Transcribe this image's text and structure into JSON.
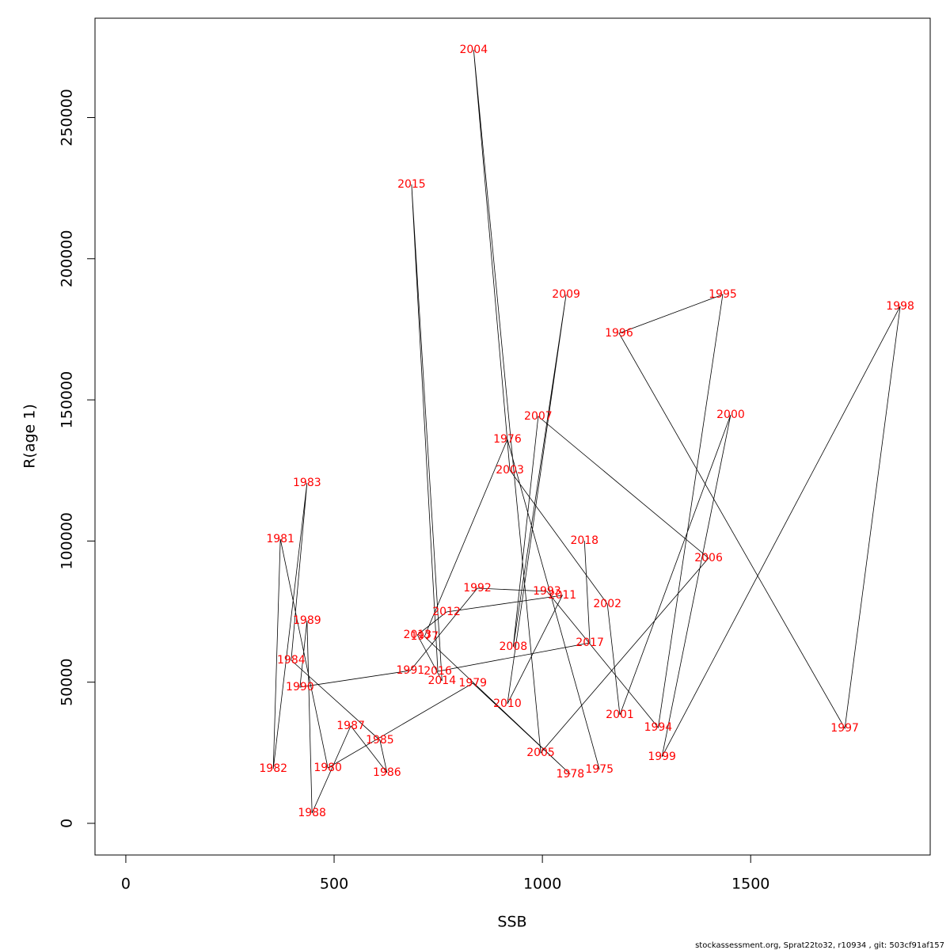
{
  "chart_data": {
    "type": "line",
    "xlabel": "SSB",
    "ylabel": "R(age 1)",
    "point_labels": [
      "1975",
      "1976",
      "1977",
      "1978",
      "1979",
      "1980",
      "1981",
      "1982",
      "1983",
      "1984",
      "1985",
      "1986",
      "1987",
      "1988",
      "1989",
      "1990",
      "1991",
      "1992",
      "1993",
      "1994",
      "1995",
      "1996",
      "1997",
      "1998",
      "1999",
      "2000",
      "2001",
      "2002",
      "2003",
      "2004",
      "2005",
      "2006",
      "2007",
      "2008",
      "2009",
      "2010",
      "2011",
      "2012",
      "2013",
      "2014",
      "2015",
      "2016",
      "2017",
      "2018"
    ],
    "x": [
      1137,
      916,
      717,
      1067,
      833,
      485,
      371,
      354,
      435,
      397,
      610,
      627,
      540,
      447,
      435,
      418,
      683,
      844,
      1011,
      1278,
      1433,
      1184,
      1726,
      1859,
      1287,
      1452,
      1186,
      1156,
      922,
      835,
      996,
      1399,
      990,
      930,
      1057,
      916,
      1048,
      770,
      700,
      759,
      686,
      749,
      1114,
      1101
    ],
    "series": [
      {
        "color": "#000000",
        "label_color": "#ff0000",
        "values": [
          19070,
          136000,
          66180,
          17390,
          49640,
          19630,
          100670,
          19350,
          120580,
          57770,
          29440,
          17950,
          34490,
          3650,
          71790,
          48230,
          54120,
          83290,
          82170,
          33930,
          187320,
          173580,
          33650,
          183120,
          23560,
          144700,
          38420,
          77680,
          125070,
          273980,
          24960,
          93940,
          144140,
          62530,
          187320,
          42340,
          80760,
          74870,
          66740,
          50480,
          226300,
          53840,
          63940,
          100110
        ]
      }
    ],
    "xlim": [
      -74,
      1931
    ],
    "ylim": [
      -11217,
      285190
    ],
    "xticks": [
      0,
      500,
      1000,
      1500
    ],
    "yticks": [
      0,
      50000,
      100000,
      150000,
      200000,
      250000
    ],
    "grid": false,
    "footer": "stockassessment.org, Sprat22to32, r10934 , git: 503cf91af157"
  }
}
